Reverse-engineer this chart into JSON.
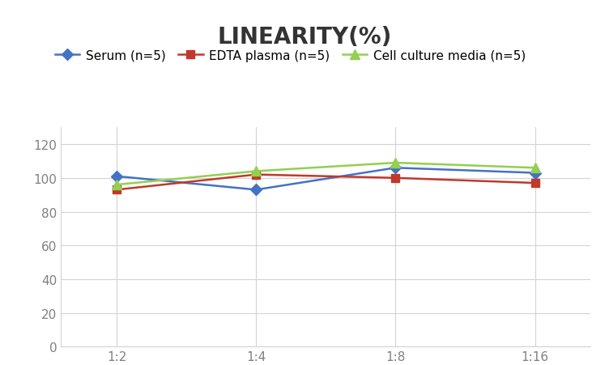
{
  "title": "LINEARITY(%)",
  "x_labels": [
    "1:2",
    "1:4",
    "1:8",
    "1:16"
  ],
  "series": [
    {
      "label": "Serum (n=5)",
      "values": [
        101,
        93,
        106,
        103
      ],
      "color": "#4472C4",
      "marker": "D",
      "marker_size": 7,
      "linewidth": 1.8
    },
    {
      "label": "EDTA plasma (n=5)",
      "values": [
        93,
        102,
        100,
        97
      ],
      "color": "#C0392B",
      "marker": "s",
      "marker_size": 7,
      "linewidth": 1.8
    },
    {
      "label": "Cell culture media (n=5)",
      "values": [
        96,
        104,
        109,
        106
      ],
      "color": "#92D050",
      "marker": "^",
      "marker_size": 9,
      "linewidth": 1.8
    }
  ],
  "ylim": [
    0,
    130
  ],
  "yticks": [
    0,
    20,
    40,
    60,
    80,
    100,
    120
  ],
  "background_color": "#ffffff",
  "grid_color": "#d3d3d3",
  "title_fontsize": 20,
  "legend_fontsize": 11,
  "tick_fontsize": 11,
  "tick_color": "#808080"
}
